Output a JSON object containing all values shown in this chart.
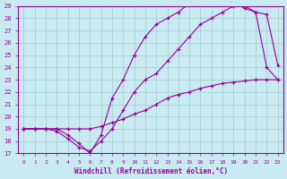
{
  "xlabel": "Windchill (Refroidissement éolien,°C)",
  "xlim": [
    -0.5,
    23.5
  ],
  "ylim": [
    17,
    29
  ],
  "xticks": [
    0,
    1,
    2,
    3,
    4,
    5,
    6,
    7,
    8,
    9,
    10,
    11,
    12,
    13,
    14,
    15,
    16,
    17,
    18,
    19,
    20,
    21,
    22,
    23
  ],
  "yticks": [
    17,
    18,
    19,
    20,
    21,
    22,
    23,
    24,
    25,
    26,
    27,
    28,
    29
  ],
  "bg_color": "#c8eaf0",
  "line_color": "#990099",
  "grid_color": "#a0ccd4",
  "lines": [
    {
      "x": [
        0,
        1,
        2,
        3,
        4,
        5,
        6,
        7,
        8,
        9,
        10,
        11,
        12,
        13,
        14,
        15,
        16,
        17,
        18,
        19,
        20,
        21,
        22,
        23
      ],
      "y": [
        19,
        19,
        19,
        19,
        19,
        19,
        19,
        19.2,
        19.5,
        19.8,
        20.2,
        20.5,
        21.0,
        21.5,
        21.8,
        22.0,
        22.3,
        22.5,
        22.7,
        22.8,
        22.9,
        23.0,
        23.0,
        23.0
      ]
    },
    {
      "x": [
        0,
        1,
        2,
        3,
        4,
        5,
        6,
        7,
        8,
        9,
        10,
        11,
        12,
        13,
        14,
        15,
        16,
        17,
        18,
        19,
        20,
        21,
        22,
        23
      ],
      "y": [
        19,
        19,
        19,
        18.8,
        18.2,
        17.5,
        17.2,
        18.0,
        19.0,
        20.5,
        22.0,
        23.0,
        23.5,
        24.5,
        25.5,
        26.5,
        27.5,
        28.0,
        28.5,
        29.0,
        29.0,
        28.5,
        24.0,
        23.0
      ]
    },
    {
      "x": [
        0,
        1,
        2,
        3,
        4,
        5,
        6,
        7,
        8,
        9,
        10,
        11,
        12,
        13,
        14,
        15,
        16,
        17,
        18,
        19,
        20,
        21,
        22,
        23
      ],
      "y": [
        19,
        19,
        19,
        19,
        18.5,
        17.8,
        17.0,
        18.5,
        21.5,
        23.0,
        25.0,
        26.5,
        27.5,
        28.0,
        28.5,
        29.2,
        29.3,
        29.5,
        29.5,
        29.3,
        28.8,
        28.5,
        28.3,
        24.2
      ]
    }
  ],
  "figsize": [
    3.2,
    2.0
  ],
  "dpi": 100
}
